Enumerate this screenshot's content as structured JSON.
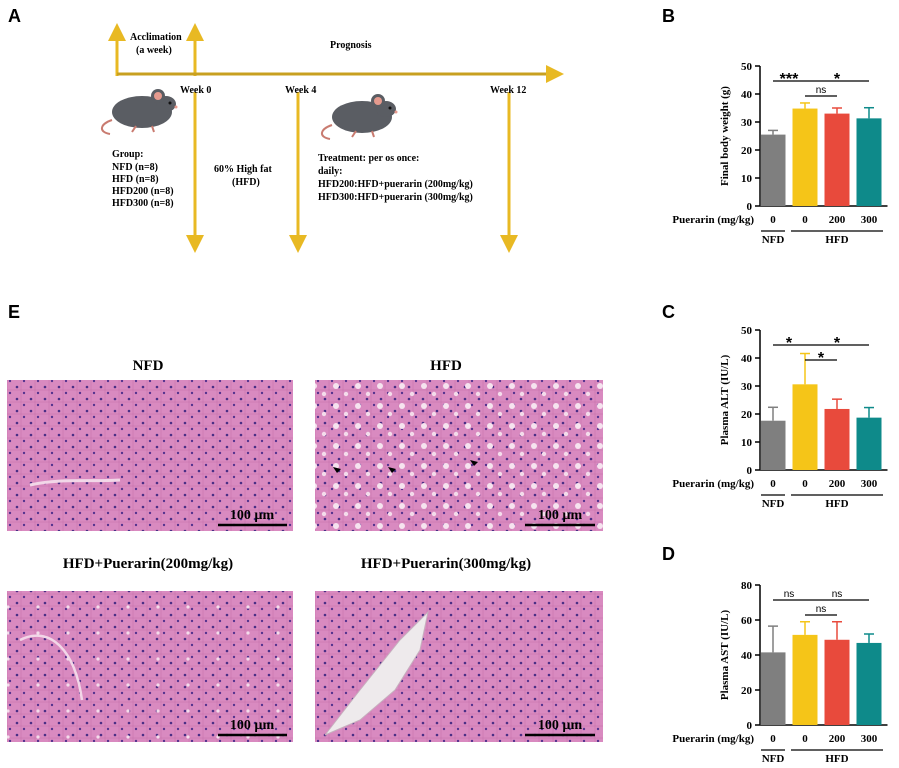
{
  "panel_labels": {
    "a": "A",
    "b": "B",
    "c": "C",
    "d": "D",
    "e": "E"
  },
  "timeline": {
    "acclimation": "Acclimation",
    "acclimation_sub": "(a week)",
    "prognosis": "Prognosis",
    "week0": "Week 0",
    "week4": "Week 4",
    "week12": "Week 12",
    "group_title": "Group:",
    "groups": [
      "NFD (n=8)",
      "HFD (n=8)",
      "HFD200 (n=8)",
      "HFD300 (n=8)"
    ],
    "diet_line1": "60% High fat",
    "diet_line2": "(HFD)",
    "treatment": [
      "Treatment: per os once:",
      "daily:",
      "HFD200:HFD+puerarin (200mg/kg)",
      "HFD300:HFD+puerarin (300mg/kg)"
    ],
    "arrow_color": "#E8B923"
  },
  "bar_colors": [
    "#7F7F7F",
    "#F5C518",
    "#E84A3C",
    "#0E8A8A"
  ],
  "x_axis": {
    "label": "Puerarin (mg/kg)",
    "doses": [
      "0",
      "0",
      "200",
      "300"
    ],
    "group_nfd": "NFD",
    "group_hfd": "HFD"
  },
  "chart_data": [
    {
      "type": "bar",
      "panel": "B",
      "ylabel": "Final body weight (g)",
      "ylim": [
        0,
        50
      ],
      "yticks": [
        "0",
        "10",
        "20",
        "30",
        "40",
        "50"
      ],
      "categories": [
        "NFD 0",
        "HFD 0",
        "HFD 200",
        "HFD 300"
      ],
      "values": [
        25.5,
        34.8,
        33,
        31.3
      ],
      "errors": [
        1.5,
        2,
        2,
        3.8
      ],
      "significance": [
        {
          "from": 0,
          "to": 1,
          "label": "***"
        },
        {
          "from": 1,
          "to": 3,
          "label": "*"
        },
        {
          "from": 1,
          "to": 2,
          "label": "ns"
        }
      ]
    },
    {
      "type": "bar",
      "panel": "C",
      "ylabel": "Plasma ALT (IU/L)",
      "ylim": [
        0,
        50
      ],
      "yticks": [
        "0",
        "10",
        "20",
        "30",
        "40",
        "50"
      ],
      "categories": [
        "NFD 0",
        "HFD 0",
        "HFD 200",
        "HFD 300"
      ],
      "values": [
        17.6,
        30.6,
        21.8,
        18.7
      ],
      "errors": [
        4.8,
        11,
        3.5,
        3.6
      ],
      "significance": [
        {
          "from": 0,
          "to": 1,
          "label": "*"
        },
        {
          "from": 1,
          "to": 3,
          "label": "*"
        },
        {
          "from": 1,
          "to": 2,
          "label": "*"
        }
      ]
    },
    {
      "type": "bar",
      "panel": "D",
      "ylabel": "Plasma AST (IU/L)",
      "ylim": [
        0,
        80
      ],
      "yticks": [
        "0",
        "20",
        "40",
        "60",
        "80"
      ],
      "categories": [
        "NFD 0",
        "HFD 0",
        "HFD 200",
        "HFD 300"
      ],
      "values": [
        41.5,
        51.5,
        48.7,
        46.9
      ],
      "errors": [
        15,
        7.5,
        10.3,
        5.1
      ],
      "significance": [
        {
          "from": 0,
          "to": 1,
          "label": "ns"
        },
        {
          "from": 1,
          "to": 3,
          "label": "ns"
        },
        {
          "from": 1,
          "to": 2,
          "label": "ns"
        }
      ]
    }
  ],
  "histology": {
    "titles": [
      "NFD",
      "HFD",
      "HFD+Puerarin(200mg/kg)",
      "HFD+Puerarin(300mg/kg)"
    ],
    "scale_bar": "100 µm",
    "tissue_color": "#D77FB5"
  }
}
